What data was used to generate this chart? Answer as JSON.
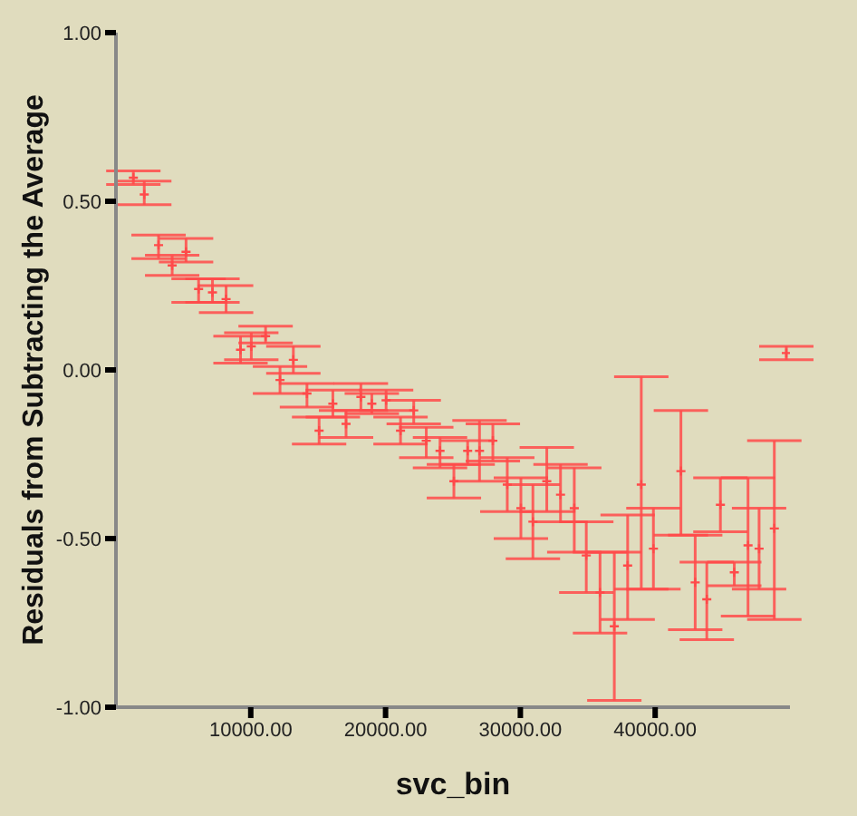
{
  "chart_data": {
    "type": "scatter",
    "xlabel": "svc_bin",
    "ylabel": "Residuals from Subtracting the Average",
    "marker": "cross",
    "grid": false,
    "legend": false,
    "xlim": [
      0,
      50000
    ],
    "ylim": [
      -1,
      1
    ],
    "xticks": [
      {
        "value": 10000,
        "label": "10000.00"
      },
      {
        "value": 20000,
        "label": "20000.00"
      },
      {
        "value": 30000,
        "label": "30000.00"
      },
      {
        "value": 40000,
        "label": "40000.00"
      }
    ],
    "yticks": [
      {
        "value": -1,
        "label": "-1.00"
      },
      {
        "value": -0.5,
        "label": "-0.50"
      },
      {
        "value": 0,
        "label": "0.00"
      },
      {
        "value": 0.5,
        "label": "0.50"
      },
      {
        "value": 1,
        "label": "1.00"
      }
    ],
    "series": [
      {
        "color": "#ff4a4a",
        "x": [
          1290,
          2100,
          3160,
          4170,
          5200,
          6130,
          7160,
          8170,
          9240,
          10040,
          11100,
          12170,
          13160,
          14170,
          15070,
          16090,
          17070,
          18170,
          18980,
          20040,
          21110,
          22090,
          23020,
          24040,
          25070,
          26090,
          26970,
          27960,
          29030,
          30040,
          30930,
          31960,
          32980,
          34000,
          34890,
          35910,
          36970,
          37960,
          38970,
          39870,
          41910,
          42970,
          43830,
          44840,
          45870,
          46890,
          47710,
          48840,
          49730
        ],
        "values": [
          0.57,
          0.52,
          0.37,
          0.31,
          0.35,
          0.24,
          0.23,
          0.21,
          0.06,
          0.07,
          0.1,
          -0.03,
          0.03,
          -0.07,
          -0.18,
          -0.1,
          -0.16,
          -0.08,
          -0.1,
          -0.09,
          -0.18,
          -0.12,
          -0.21,
          -0.24,
          -0.33,
          -0.24,
          -0.24,
          -0.21,
          -0.34,
          -0.41,
          -0.45,
          -0.33,
          -0.37,
          -0.41,
          -0.55,
          -0.66,
          -0.76,
          -0.58,
          -0.34,
          -0.53,
          -0.3,
          -0.63,
          -0.68,
          -0.4,
          -0.6,
          -0.52,
          -0.53,
          -0.47,
          0.05
        ],
        "errors": [
          [
            0.55,
            0.59
          ],
          [
            0.49,
            0.56
          ],
          [
            0.33,
            0.4
          ],
          [
            0.28,
            0.34
          ],
          [
            0.32,
            0.39
          ],
          [
            0.2,
            0.27
          ],
          [
            0.2,
            0.27
          ],
          [
            0.17,
            0.25
          ],
          [
            0.02,
            0.1
          ],
          [
            0.03,
            0.11
          ],
          [
            0.08,
            0.13
          ],
          [
            -0.07,
            0.01
          ],
          [
            -0.01,
            0.07
          ],
          [
            -0.11,
            -0.04
          ],
          [
            -0.22,
            -0.14
          ],
          [
            -0.14,
            -0.06
          ],
          [
            -0.2,
            -0.12
          ],
          [
            -0.12,
            -0.04
          ],
          [
            -0.13,
            -0.07
          ],
          [
            -0.12,
            -0.06
          ],
          [
            -0.22,
            -0.14
          ],
          [
            -0.16,
            -0.09
          ],
          [
            -0.26,
            -0.17
          ],
          [
            -0.29,
            -0.2
          ],
          [
            -0.38,
            -0.28
          ],
          [
            -0.28,
            -0.21
          ],
          [
            -0.33,
            -0.15
          ],
          [
            -0.27,
            -0.16
          ],
          [
            -0.42,
            -0.26
          ],
          [
            -0.5,
            -0.32
          ],
          [
            -0.56,
            -0.34
          ],
          [
            -0.42,
            -0.23
          ],
          [
            -0.45,
            -0.28
          ],
          [
            -0.54,
            -0.29
          ],
          [
            -0.66,
            -0.45
          ],
          [
            -0.78,
            -0.54
          ],
          [
            -0.98,
            -0.54
          ],
          [
            -0.74,
            -0.43
          ],
          [
            -0.65,
            -0.02
          ],
          [
            -0.65,
            -0.41
          ],
          [
            -0.49,
            -0.12
          ],
          [
            -0.77,
            -0.49
          ],
          [
            -0.8,
            -0.57
          ],
          [
            -0.48,
            -0.32
          ],
          [
            -0.64,
            -0.57
          ],
          [
            -0.73,
            -0.32
          ],
          [
            -0.65,
            -0.41
          ],
          [
            -0.74,
            -0.21
          ],
          [
            0.03,
            0.07
          ]
        ]
      }
    ]
  }
}
